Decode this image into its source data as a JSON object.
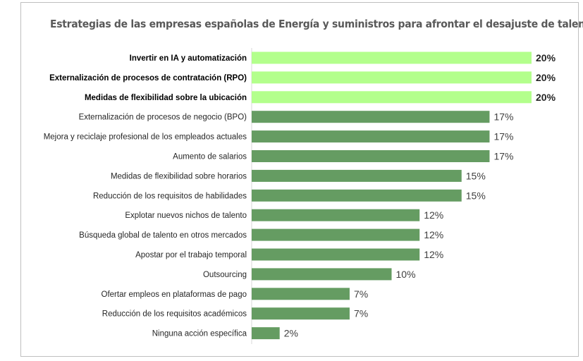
{
  "chart_data": {
    "type": "bar",
    "orientation": "horizontal",
    "title": "Estrategias de las empresas españolas de Energía y suministros para afrontar el desajuste de talento",
    "categories": [
      "Invertir en IA y automatización",
      "Externalización de procesos de contratación (RPO)",
      "Medidas de flexibilidad sobre la ubicación",
      "Externalización de procesos de negocio (BPO)",
      "Mejora y reciclaje profesional de los empleados actuales",
      "Aumento de salarios",
      "Medidas de flexibilidad sobre horarios",
      "Reducción de los requisitos de habilidades",
      "Explotar nuevos nichos de talento",
      "Búsqueda global de talento en otros mercados",
      "Apostar por el trabajo temporal",
      "Outsourcing",
      "Ofertar empleos en plataformas de pago",
      "Reducción de los requisitos académicos",
      "Ninguna acción específica"
    ],
    "values": [
      20,
      20,
      20,
      17,
      17,
      17,
      15,
      15,
      12,
      12,
      12,
      10,
      7,
      7,
      2
    ],
    "data_labels": [
      "20%",
      "20%",
      "20%",
      "17%",
      "17%",
      "17%",
      "15%",
      "15%",
      "12%",
      "12%",
      "12%",
      "10%",
      "7%",
      "7%",
      "2%"
    ],
    "highlighted": [
      true,
      true,
      true,
      false,
      false,
      false,
      false,
      false,
      false,
      false,
      false,
      false,
      false,
      false,
      false
    ],
    "colors": {
      "highlight": "#b3ff8c",
      "default": "#659c62"
    },
    "xlabel": "",
    "ylabel": "",
    "xlim": [
      0,
      20
    ],
    "grid": false,
    "legend": "none"
  }
}
